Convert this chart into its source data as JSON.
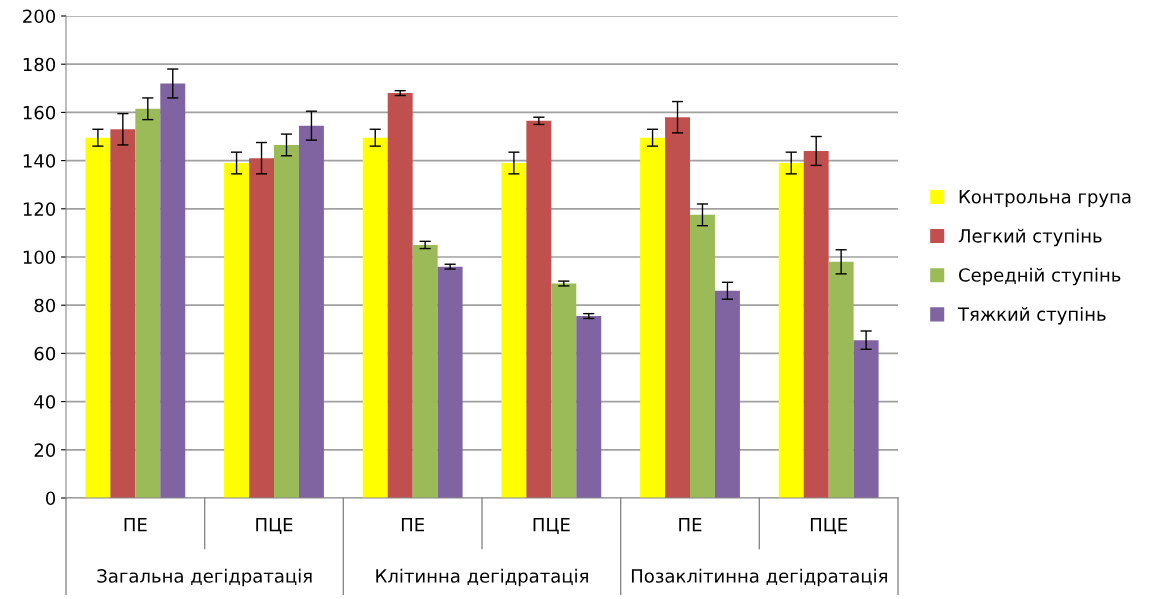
{
  "chart_data": {
    "type": "bar",
    "categories": [
      "ПЕ",
      "ПЦЕ",
      "ПЕ",
      "ПЦЕ",
      "ПЕ",
      "ПЦЕ"
    ],
    "annotations": [
      "Загальна дегідратація",
      "Клітинна дегідратація",
      "Позаклітинна дегідратація"
    ],
    "series": [
      {
        "name": "Контрольна група",
        "color": "#ffff00",
        "values": [
          149.5,
          139,
          149.5,
          139,
          149.5,
          139
        ],
        "errors": [
          3.5,
          4.5,
          3.5,
          4.5,
          3.5,
          4.5
        ]
      },
      {
        "name": "Легкий ступінь",
        "color": "#c0504d",
        "values": [
          153,
          141,
          168,
          156.5,
          158,
          144
        ],
        "errors": [
          6.5,
          6.5,
          1,
          1.5,
          6.5,
          6
        ]
      },
      {
        "name": "Середній ступінь",
        "color": "#9bbb59",
        "values": [
          161.5,
          146.5,
          105,
          89,
          117.5,
          98
        ],
        "errors": [
          4.5,
          4.5,
          1.5,
          1,
          4.5,
          5
        ]
      },
      {
        "name": "Тяжкий ступінь",
        "color": "#8064a2",
        "values": [
          172,
          154.5,
          96,
          75.5,
          86,
          65.5
        ],
        "errors": [
          6,
          6,
          1,
          1,
          3.5,
          3.8
        ]
      }
    ],
    "ylim": [
      0,
      200
    ],
    "yticks": [
      0,
      20,
      40,
      60,
      80,
      100,
      120,
      140,
      160,
      180,
      200
    ],
    "grid": "y",
    "legend": "right"
  }
}
